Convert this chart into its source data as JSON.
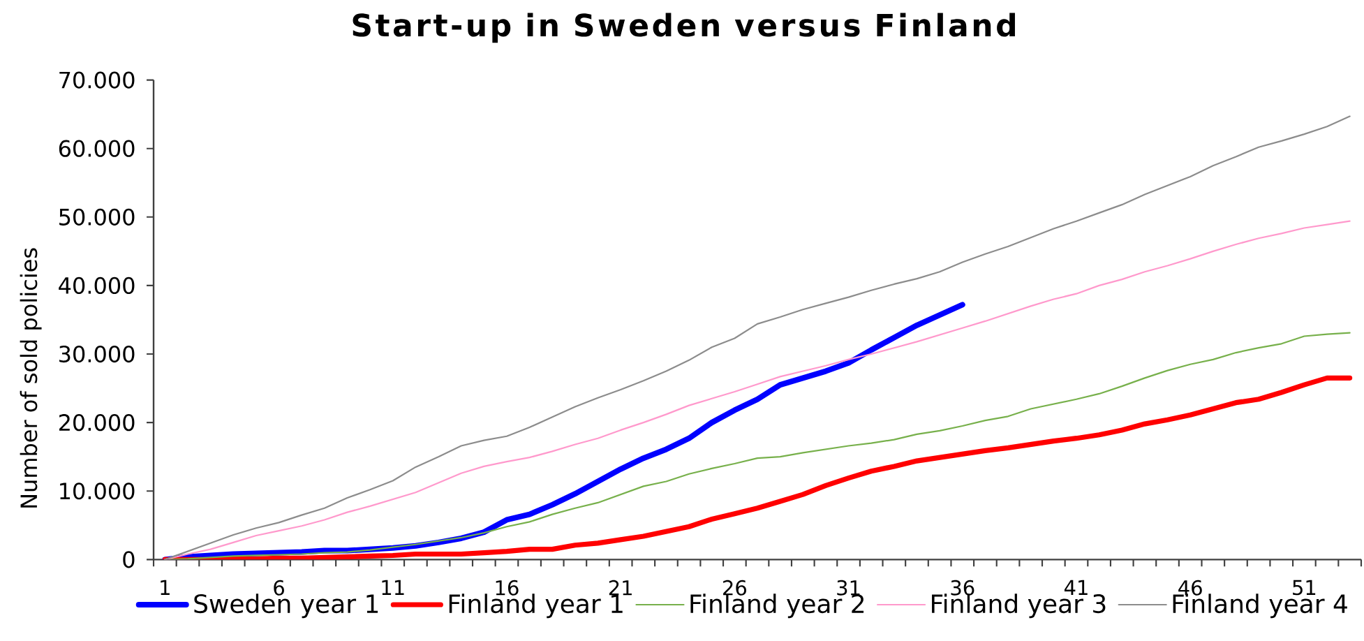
{
  "chart_data": {
    "type": "line",
    "title": "Start-up in Sweden versus Finland",
    "ylabel": "Number of sold policies",
    "categories": [
      "1",
      null,
      null,
      null,
      null,
      "6",
      null,
      null,
      null,
      null,
      "11",
      null,
      null,
      null,
      null,
      "16",
      null,
      null,
      null,
      null,
      "21",
      null,
      null,
      null,
      null,
      "26",
      null,
      null,
      null,
      null,
      "31",
      null,
      null,
      null,
      null,
      "36",
      null,
      null,
      null,
      null,
      "41",
      null,
      null,
      null,
      null,
      "46",
      null,
      null,
      null,
      null,
      "51",
      null,
      null
    ],
    "ylim": [
      0,
      70000
    ],
    "yticks": [
      0,
      {
        "value": 10000,
        "label": "10.000"
      },
      {
        "value": 20000,
        "label": "20.000"
      },
      {
        "value": 30000,
        "label": "30.000"
      },
      {
        "value": 40000,
        "label": "40.000"
      },
      {
        "value": 50000,
        "label": "50.000"
      },
      {
        "value": 60000,
        "label": "60.000"
      },
      {
        "value": 70000,
        "label": "70.000"
      }
    ],
    "legend": "bottom",
    "series": [
      {
        "name": "Sweden year 1",
        "color": "#0000ff",
        "values": [
          0,
          400,
          600,
          800,
          900,
          1000,
          1100,
          1300,
          1300,
          1500,
          1700,
          2000,
          2500,
          3100,
          4000,
          5800,
          6600,
          8000,
          9600,
          11400,
          13200,
          14800,
          16100,
          17700,
          20000,
          21800,
          23400,
          25500,
          26500,
          27500,
          28700,
          30600,
          32400,
          34200,
          35700,
          37200,
          null,
          null,
          null,
          null,
          null,
          null,
          null,
          null,
          null,
          null,
          null,
          null,
          null,
          null,
          null,
          null,
          null
        ]
      },
      {
        "name": "Finland year 1",
        "color": "#ff0000",
        "values": [
          0,
          0,
          0,
          100,
          100,
          200,
          200,
          300,
          400,
          500,
          600,
          800,
          800,
          800,
          1000,
          1200,
          1500,
          1500,
          2100,
          2400,
          2900,
          3400,
          4100,
          4800,
          5900,
          6700,
          7500,
          8500,
          9500,
          10800,
          11900,
          12900,
          13600,
          14400,
          14900,
          15400,
          15900,
          16300,
          16800,
          17300,
          17700,
          18200,
          18900,
          19800,
          20400,
          21100,
          22000,
          22900,
          23400,
          24400,
          25500,
          26500,
          26500
        ]
      },
      {
        "name": "Finland year 2",
        "color": "#77b04b",
        "values": [
          0,
          100,
          300,
          500,
          600,
          700,
          800,
          1000,
          1100,
          1400,
          1800,
          2200,
          2700,
          3200,
          3900,
          4800,
          5500,
          6600,
          7500,
          8300,
          9500,
          10700,
          11400,
          12500,
          13300,
          14000,
          14800,
          15000,
          15600,
          16100,
          16600,
          17000,
          17500,
          18300,
          18800,
          19500,
          20300,
          20900,
          22000,
          22700,
          23400,
          24200,
          25300,
          26500,
          27600,
          28500,
          29200,
          30200,
          30900,
          31500,
          32600,
          32900,
          33100
        ]
      },
      {
        "name": "Finland year 3",
        "color": "#ff99cc",
        "values": [
          0,
          800,
          1500,
          2500,
          3500,
          4200,
          4900,
          5800,
          6900,
          7800,
          8800,
          9800,
          11200,
          12600,
          13600,
          14300,
          14900,
          15800,
          16800,
          17700,
          18900,
          20000,
          21200,
          22500,
          23500,
          24500,
          25600,
          26700,
          27500,
          28300,
          29200,
          30000,
          30900,
          31800,
          32800,
          33800,
          34800,
          35900,
          37000,
          38000,
          38800,
          40000,
          40900,
          42000,
          42900,
          43900,
          45000,
          46000,
          46900,
          47600,
          48400,
          48900,
          49400
        ]
      },
      {
        "name": "Finland year 4",
        "color": "#8c8c8c",
        "values": [
          0,
          1200,
          2400,
          3600,
          4600,
          5400,
          6500,
          7500,
          9000,
          10200,
          11500,
          13500,
          15000,
          16600,
          17400,
          18000,
          19300,
          20800,
          22300,
          23600,
          24800,
          26100,
          27500,
          29100,
          31000,
          32300,
          34400,
          35400,
          36500,
          37400,
          38300,
          39300,
          40200,
          41000,
          42000,
          43400,
          44600,
          45700,
          47000,
          48300,
          49400,
          50600,
          51800,
          53300,
          54600,
          55900,
          57500,
          58800,
          60200,
          61100,
          62100,
          63200,
          64700
        ]
      }
    ]
  }
}
